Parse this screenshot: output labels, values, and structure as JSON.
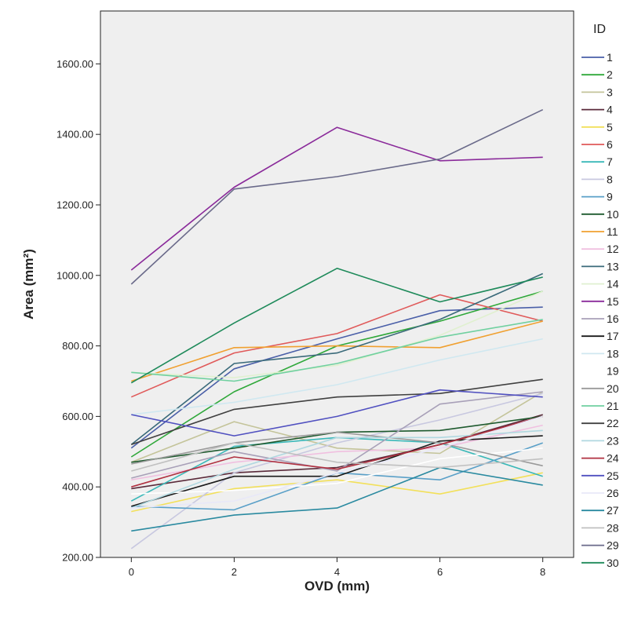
{
  "chart_data": {
    "type": "line",
    "xlabel": "OVD (mm)",
    "ylabel": "Area (mm²)",
    "x": [
      0,
      2,
      4,
      6,
      8
    ],
    "xticks": [
      "0",
      "2",
      "4",
      "6",
      "8"
    ],
    "xlim": [
      -0.6,
      8.6
    ],
    "yticks": [
      "200.00",
      "400.00",
      "600.00",
      "800.00",
      "1000.00",
      "1200.00",
      "1400.00",
      "1600.00"
    ],
    "ytick_values": [
      200,
      400,
      600,
      800,
      1000,
      1200,
      1400,
      1600
    ],
    "ylim": [
      200,
      1750
    ],
    "grid": false,
    "legend_title": "ID",
    "legend_position": "right",
    "plot_background": "#efefef",
    "series": [
      {
        "name": "1",
        "color": "#4a5fa8",
        "values": [
          510,
          735,
          820,
          900,
          910
        ]
      },
      {
        "name": "2",
        "color": "#2fa83a",
        "values": [
          485,
          670,
          800,
          870,
          955
        ]
      },
      {
        "name": "3",
        "color": "#c4c49a",
        "values": [
          470,
          585,
          510,
          495,
          670
        ]
      },
      {
        "name": "4",
        "color": "#5a2a3a",
        "values": [
          395,
          440,
          455,
          520,
          605
        ]
      },
      {
        "name": "5",
        "color": "#f2e05a",
        "values": [
          330,
          395,
          420,
          380,
          440
        ]
      },
      {
        "name": "6",
        "color": "#e05a5a",
        "values": [
          655,
          780,
          835,
          945,
          870
        ]
      },
      {
        "name": "7",
        "color": "#3ab8b8",
        "values": [
          360,
          515,
          540,
          525,
          430
        ]
      },
      {
        "name": "8",
        "color": "#c8c8e0",
        "values": [
          225,
          440,
          525,
          590,
          665
        ]
      },
      {
        "name": "9",
        "color": "#5aa0c8",
        "values": [
          345,
          335,
          440,
          420,
          525
        ]
      },
      {
        "name": "10",
        "color": "#1e5a2e",
        "values": [
          470,
          510,
          555,
          560,
          600
        ]
      },
      {
        "name": "11",
        "color": "#f0a030",
        "values": [
          700,
          795,
          800,
          795,
          870
        ]
      },
      {
        "name": "12",
        "color": "#f0c0e0",
        "values": [
          420,
          470,
          500,
          510,
          575
        ]
      },
      {
        "name": "13",
        "color": "#3a6a7a",
        "values": [
          520,
          750,
          780,
          875,
          1005
        ]
      },
      {
        "name": "14",
        "color": "#e0f0d0",
        "values": [
          725,
          710,
          745,
          830,
          955
        ]
      },
      {
        "name": "15",
        "color": "#8a2a9a",
        "values": [
          1015,
          1250,
          1420,
          1325,
          1335
        ]
      },
      {
        "name": "16",
        "color": "#a8a0b8",
        "values": [
          425,
          500,
          445,
          635,
          670
        ]
      },
      {
        "name": "17",
        "color": "#1a1a1a",
        "values": [
          345,
          430,
          430,
          530,
          545
        ]
      },
      {
        "name": "18",
        "color": "#d0e8f0",
        "values": [
          605,
          640,
          690,
          760,
          820
        ]
      },
      {
        "name": "19",
        "color": "#ffffff",
        "values": [
          380,
          390,
          410,
          480,
          510
        ]
      },
      {
        "name": "20",
        "color": "#9a9a9a",
        "values": [
          465,
          525,
          555,
          525,
          460
        ]
      },
      {
        "name": "21",
        "color": "#70d0a0",
        "values": [
          725,
          700,
          750,
          825,
          875
        ]
      },
      {
        "name": "22",
        "color": "#404040",
        "values": [
          520,
          620,
          655,
          665,
          705
        ]
      },
      {
        "name": "23",
        "color": "#b0d8e0",
        "values": [
          340,
          450,
          540,
          540,
          560
        ]
      },
      {
        "name": "24",
        "color": "#b03040",
        "values": [
          400,
          485,
          450,
          520,
          600
        ]
      },
      {
        "name": "25",
        "color": "#5050c0",
        "values": [
          605,
          545,
          600,
          675,
          655
        ]
      },
      {
        "name": "26",
        "color": "#e8e8f8",
        "values": [
          340,
          360,
          440,
          510,
          600
        ]
      },
      {
        "name": "27",
        "color": "#2a8aa0",
        "values": [
          275,
          320,
          340,
          455,
          405
        ]
      },
      {
        "name": "28",
        "color": "#c0c0c0",
        "values": [
          445,
          525,
          470,
          455,
          480
        ]
      },
      {
        "name": "29",
        "color": "#6a6a8a",
        "values": [
          975,
          1245,
          1280,
          1330,
          1470
        ]
      },
      {
        "name": "30",
        "color": "#1e8a5a",
        "values": [
          695,
          865,
          1020,
          925,
          995
        ]
      }
    ]
  }
}
